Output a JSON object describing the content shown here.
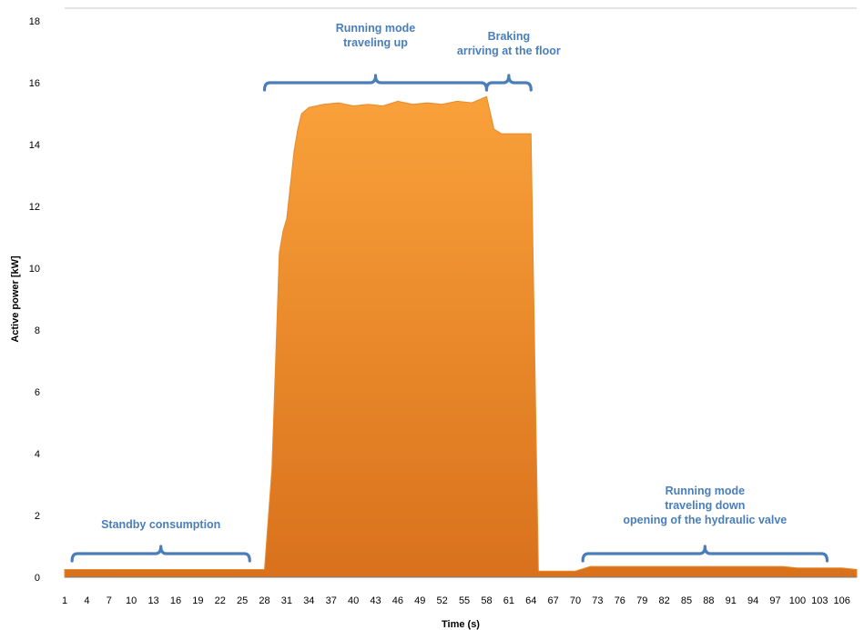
{
  "chart_data": {
    "type": "area",
    "title": "",
    "xlabel": "Time (s)",
    "ylabel": "Active power  [kW]",
    "xlim": [
      1,
      108
    ],
    "ylim": [
      0,
      18
    ],
    "yticks": [
      0,
      2,
      4,
      6,
      8,
      10,
      12,
      14,
      16,
      18
    ],
    "xticks": [
      1,
      4,
      7,
      10,
      13,
      16,
      19,
      22,
      25,
      28,
      31,
      34,
      37,
      40,
      43,
      46,
      49,
      52,
      55,
      58,
      61,
      64,
      67,
      70,
      73,
      76,
      79,
      82,
      85,
      88,
      91,
      94,
      97,
      100,
      103,
      106
    ],
    "grid": false,
    "colors": {
      "area_top": "#f9a13a",
      "area_bottom": "#d9711c",
      "area_edge": "#e9892a",
      "annotation": "#4a7ebb",
      "axis": "#808080"
    },
    "series": [
      {
        "x": [
          1,
          5,
          10,
          15,
          20,
          25,
          28,
          29,
          30,
          30.5,
          31,
          32,
          32.5,
          33,
          34,
          36,
          38,
          40,
          42,
          44,
          46,
          48,
          50,
          52,
          54,
          56,
          57,
          58,
          59,
          60,
          62,
          64,
          65,
          66,
          67,
          70,
          72,
          74,
          80,
          90,
          98,
          100,
          103,
          106,
          108
        ],
        "values": [
          0.25,
          0.25,
          0.25,
          0.25,
          0.25,
          0.25,
          0.25,
          3.5,
          10.5,
          11.2,
          11.6,
          13.8,
          14.5,
          15.0,
          15.2,
          15.3,
          15.35,
          15.25,
          15.3,
          15.25,
          15.4,
          15.3,
          15.35,
          15.3,
          15.4,
          15.35,
          15.45,
          15.55,
          14.5,
          14.35,
          14.35,
          14.35,
          0.2,
          0.2,
          0.2,
          0.2,
          0.35,
          0.35,
          0.35,
          0.35,
          0.35,
          0.3,
          0.3,
          0.3,
          0.25
        ]
      }
    ],
    "annotations": [
      {
        "lines": [
          "Standby consumption"
        ],
        "x_start": 2,
        "x_end": 26
      },
      {
        "lines": [
          "Running mode",
          "traveling up"
        ],
        "x_start": 28,
        "x_end": 58
      },
      {
        "lines": [
          "Braking",
          "arriving at the floor"
        ],
        "x_start": 58,
        "x_end": 64
      },
      {
        "lines": [
          "Running mode",
          "traveling down",
          "opening of the hydraulic valve"
        ],
        "x_start": 71,
        "x_end": 104
      }
    ]
  }
}
